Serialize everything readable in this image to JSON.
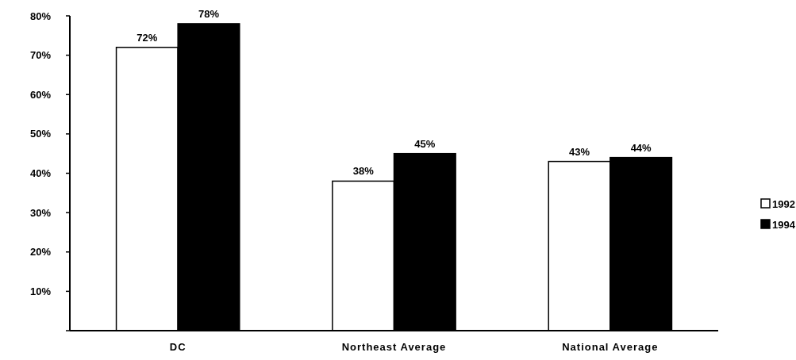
{
  "chart_data": {
    "type": "bar",
    "categories": [
      "DC",
      "Northeast Average",
      "National Average"
    ],
    "series": [
      {
        "name": "1992",
        "color": "#ffffff",
        "values": [
          72,
          38,
          43
        ],
        "value_labels": [
          "72%",
          "38%",
          "43%"
        ]
      },
      {
        "name": "1994",
        "color": "#000000",
        "values": [
          78,
          45,
          44
        ],
        "value_labels": [
          "78%",
          "45%",
          "44%"
        ]
      }
    ],
    "ylim": [
      0,
      80
    ],
    "yticks": [
      {
        "value": 0,
        "label": null
      },
      {
        "value": 10,
        "label": "10%"
      },
      {
        "value": 20,
        "label": "20%"
      },
      {
        "value": 30,
        "label": "30%"
      },
      {
        "value": 40,
        "label": "40%"
      },
      {
        "value": 50,
        "label": "50%"
      },
      {
        "value": 60,
        "label": "60%"
      },
      {
        "value": 70,
        "label": "70%"
      },
      {
        "value": 80,
        "label": "80%"
      }
    ],
    "grid": false,
    "legend": "right"
  }
}
